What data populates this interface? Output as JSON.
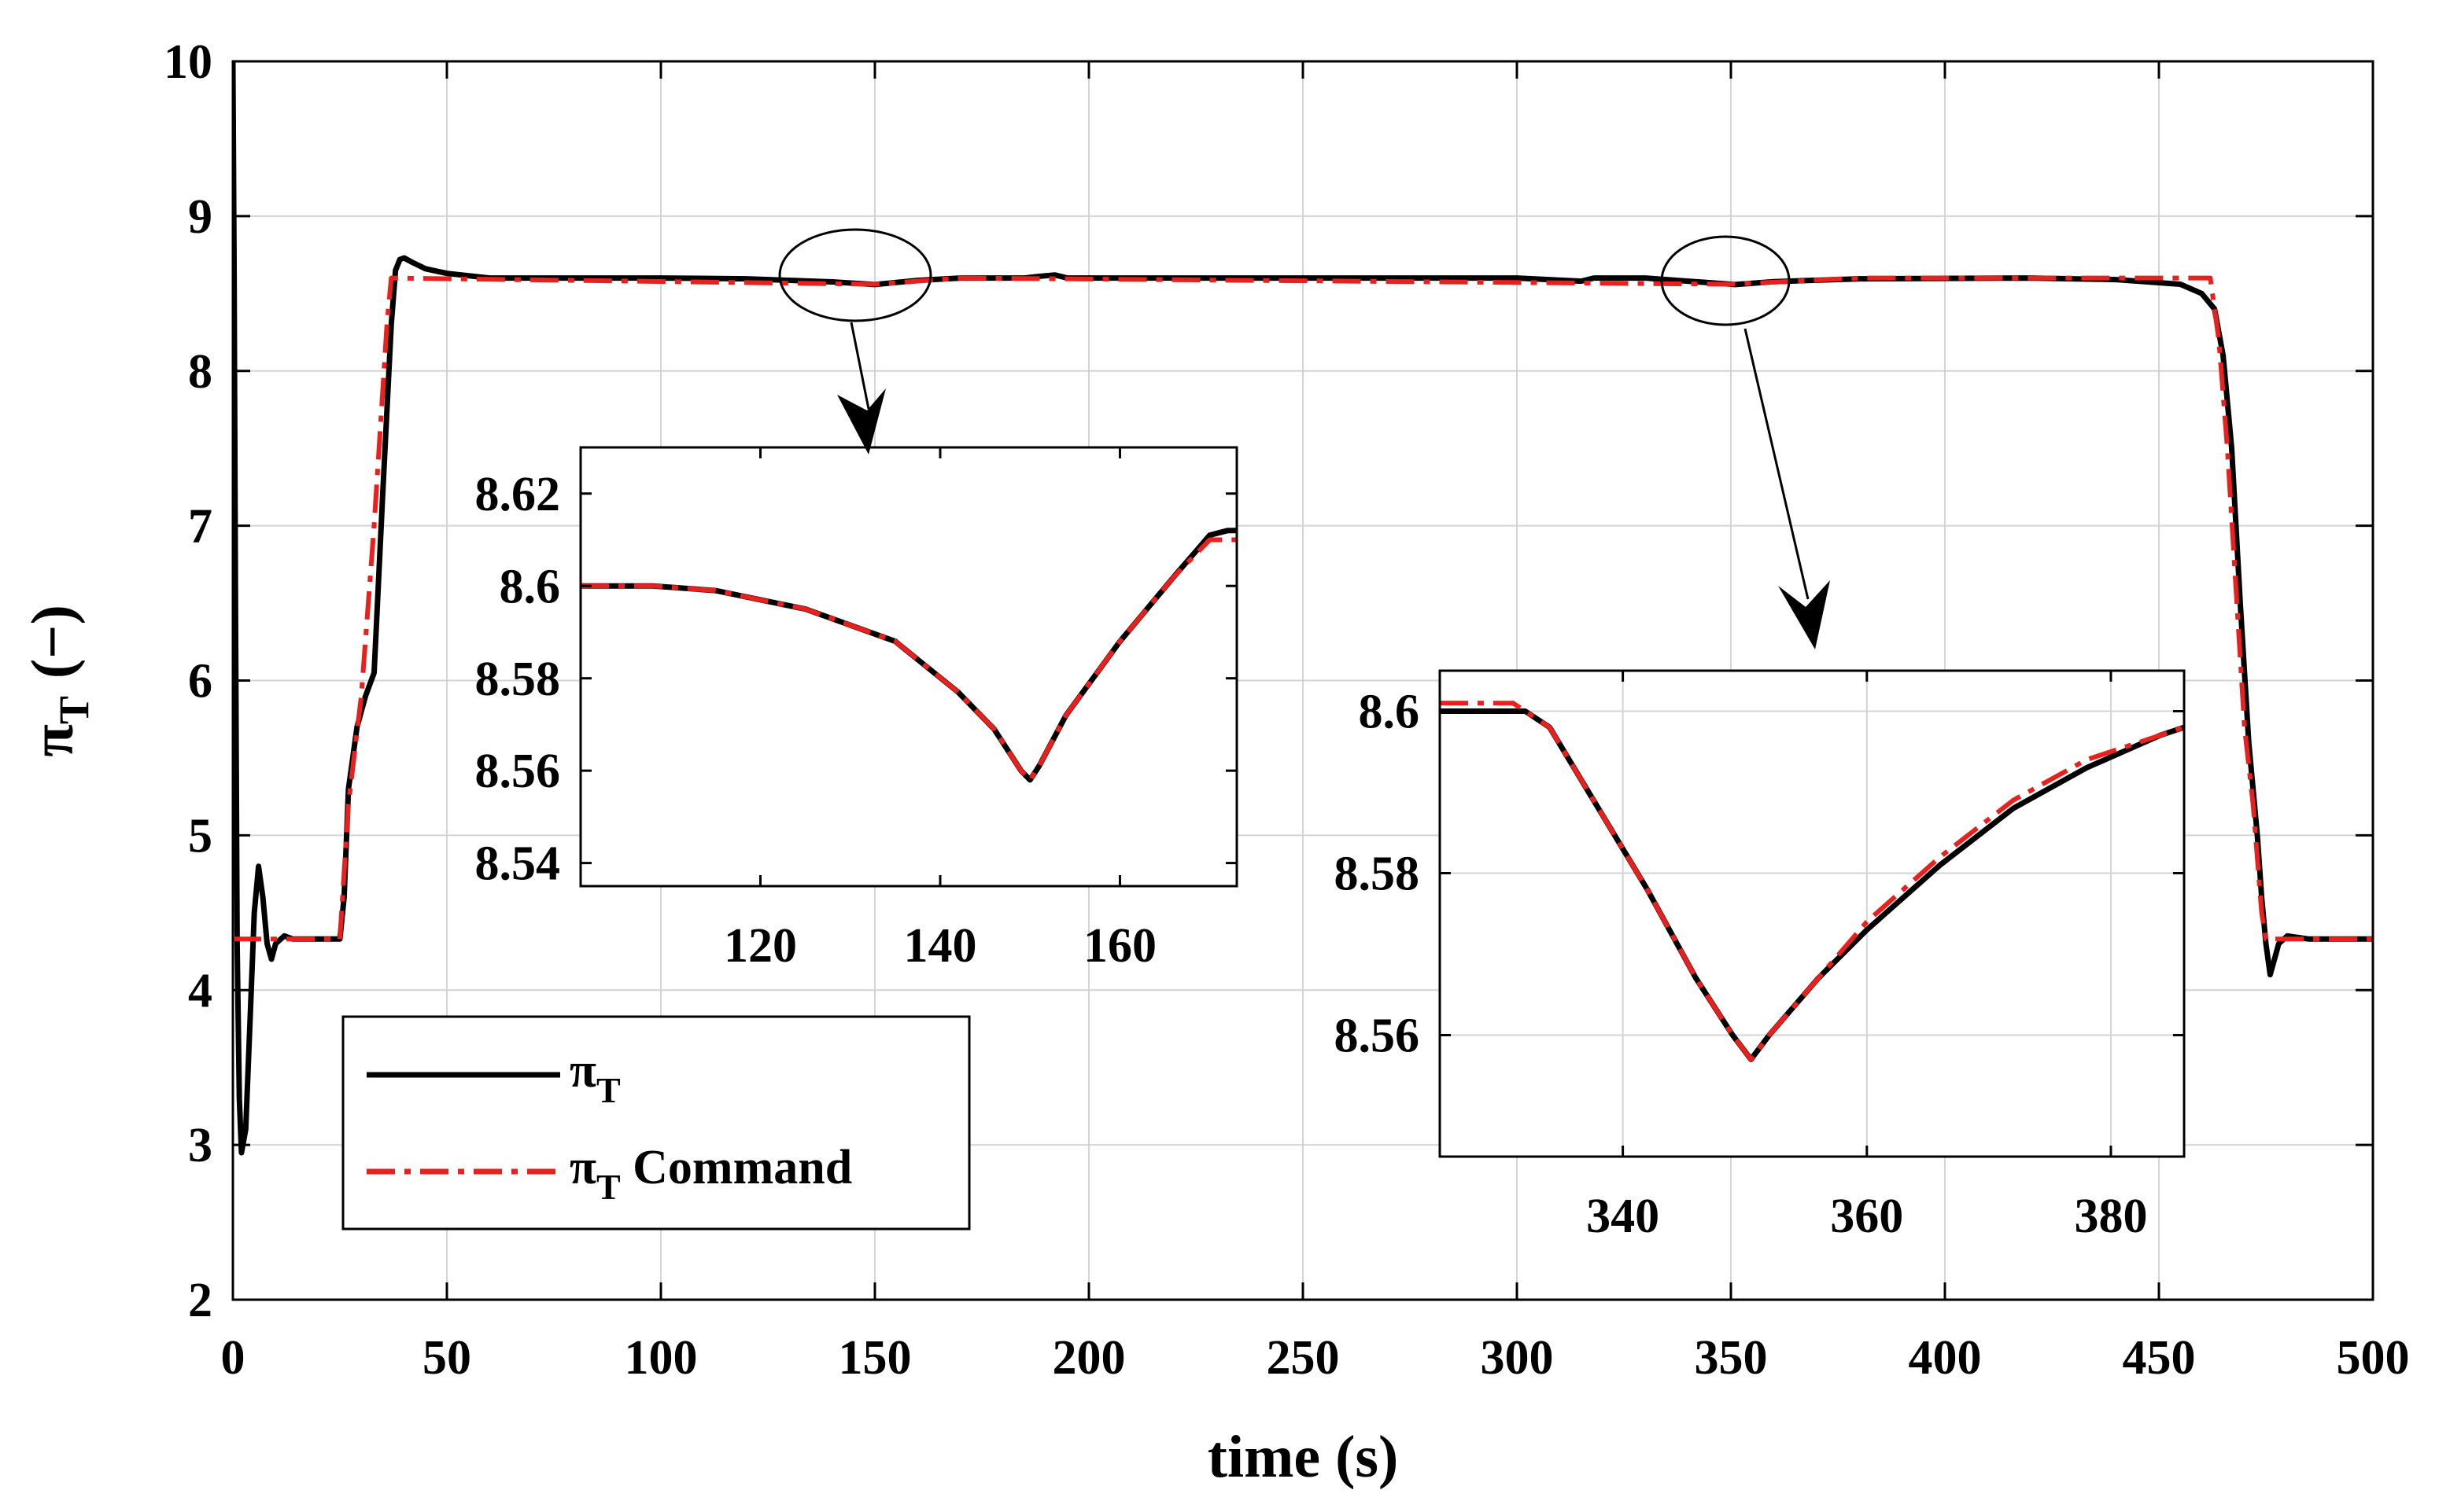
{
  "chart_data": [
    {
      "id": "main",
      "type": "line",
      "xlabel": "time (s)",
      "ylabel_symbol": "π",
      "ylabel_sub": "T",
      "ylabel_unit": "(−)",
      "xlim": [
        0,
        500
      ],
      "ylim": [
        2,
        10
      ],
      "xticks": [
        0,
        50,
        100,
        150,
        200,
        250,
        300,
        350,
        400,
        450,
        500
      ],
      "yticks": [
        2,
        3,
        4,
        5,
        6,
        7,
        8,
        9,
        10
      ],
      "grid": true,
      "legend_position": "bottom-left",
      "series": [
        {
          "name": "π_T",
          "legend_symbol": "π",
          "legend_sub": "T",
          "legend_suffix": "",
          "style": "solid",
          "color": "#000000",
          "points": [
            [
              0,
              10
            ],
            [
              0.3,
              8.6
            ],
            [
              0.6,
              6.5
            ],
            [
              1,
              4.3
            ],
            [
              1.5,
              3.3
            ],
            [
              2,
              2.95
            ],
            [
              3,
              3.1
            ],
            [
              4,
              3.8
            ],
            [
              5,
              4.5
            ],
            [
              6,
              4.8
            ],
            [
              7,
              4.6
            ],
            [
              8,
              4.3
            ],
            [
              9,
              4.2
            ],
            [
              10,
              4.3
            ],
            [
              12,
              4.35
            ],
            [
              14,
              4.33
            ],
            [
              25,
              4.33
            ],
            [
              26,
              4.6
            ],
            [
              27,
              5.3
            ],
            [
              29,
              5.7
            ],
            [
              31,
              5.9
            ],
            [
              33,
              6.05
            ],
            [
              35,
              7.2
            ],
            [
              37,
              8.3
            ],
            [
              38,
              8.65
            ],
            [
              39,
              8.72
            ],
            [
              40,
              8.73
            ],
            [
              42,
              8.7
            ],
            [
              45,
              8.66
            ],
            [
              50,
              8.63
            ],
            [
              60,
              8.6
            ],
            [
              100,
              8.6
            ],
            [
              120,
              8.595
            ],
            [
              140,
              8.575
            ],
            [
              150,
              8.558
            ],
            [
              160,
              8.585
            ],
            [
              170,
              8.6
            ],
            [
              185,
              8.6
            ],
            [
              188,
              8.61
            ],
            [
              192,
              8.62
            ],
            [
              195,
              8.6
            ],
            [
              300,
              8.6
            ],
            [
              315,
              8.58
            ],
            [
              318,
              8.6
            ],
            [
              330,
              8.6
            ],
            [
              340,
              8.58
            ],
            [
              351,
              8.558
            ],
            [
              360,
              8.577
            ],
            [
              380,
              8.595
            ],
            [
              420,
              8.6
            ],
            [
              440,
              8.59
            ],
            [
              455,
              8.56
            ],
            [
              460,
              8.5
            ],
            [
              463,
              8.4
            ],
            [
              465,
              8.1
            ],
            [
              467,
              7.5
            ],
            [
              469,
              6.5
            ],
            [
              471,
              5.6
            ],
            [
              473,
              5.0
            ],
            [
              474,
              4.6
            ],
            [
              475,
              4.3
            ],
            [
              476,
              4.1
            ],
            [
              477,
              4.2
            ],
            [
              478,
              4.3
            ],
            [
              480,
              4.35
            ],
            [
              485,
              4.33
            ],
            [
              500,
              4.33
            ]
          ]
        },
        {
          "name": "π_T Command",
          "legend_symbol": "π",
          "legend_sub": "T",
          "legend_suffix": " Command",
          "style": "dashdot",
          "color": "#e8201e",
          "points": [
            [
              0,
              4.33
            ],
            [
              25,
              4.33
            ],
            [
              27,
              5.2
            ],
            [
              30,
              5.9
            ],
            [
              33,
              7.0
            ],
            [
              36,
              8.3
            ],
            [
              37,
              8.6
            ],
            [
              150,
              8.56
            ],
            [
              170,
              8.6
            ],
            [
              350,
              8.56
            ],
            [
              380,
              8.6
            ],
            [
              462,
              8.6
            ],
            [
              464,
              8.2
            ],
            [
              466,
              7.5
            ],
            [
              468,
              6.6
            ],
            [
              470,
              5.7
            ],
            [
              472,
              5.2
            ],
            [
              474,
              4.5
            ],
            [
              475,
              4.33
            ],
            [
              500,
              4.33
            ]
          ]
        }
      ]
    },
    {
      "id": "inset1",
      "type": "line",
      "xlim": [
        100,
        173
      ],
      "ylim": [
        8.535,
        8.63
      ],
      "xticks": [
        120,
        140,
        160
      ],
      "yticks": [
        8.54,
        8.56,
        8.58,
        8.6,
        8.62
      ],
      "grid": false,
      "series": [
        {
          "name": "π_T",
          "style": "solid",
          "color": "#000000",
          "points": [
            [
              100,
              8.6
            ],
            [
              108,
              8.6
            ],
            [
              115,
              8.599
            ],
            [
              125,
              8.595
            ],
            [
              135,
              8.588
            ],
            [
              142,
              8.577
            ],
            [
              146,
              8.569
            ],
            [
              149,
              8.56
            ],
            [
              150,
              8.558
            ],
            [
              151,
              8.561
            ],
            [
              154,
              8.572
            ],
            [
              160,
              8.588
            ],
            [
              166,
              8.602
            ],
            [
              170,
              8.611
            ],
            [
              172,
              8.612
            ],
            [
              173,
              8.612
            ]
          ]
        },
        {
          "name": "π_T Command",
          "style": "dashdot",
          "color": "#e8201e",
          "points": [
            [
              100,
              8.6
            ],
            [
              108,
              8.6
            ],
            [
              115,
              8.599
            ],
            [
              125,
              8.595
            ],
            [
              135,
              8.588
            ],
            [
              142,
              8.577
            ],
            [
              146,
              8.569
            ],
            [
              149,
              8.56
            ],
            [
              150,
              8.558
            ],
            [
              151,
              8.561
            ],
            [
              154,
              8.572
            ],
            [
              160,
              8.588
            ],
            [
              166,
              8.602
            ],
            [
              170,
              8.61
            ],
            [
              173,
              8.61
            ]
          ]
        }
      ]
    },
    {
      "id": "inset2",
      "type": "line",
      "xlim": [
        325,
        386
      ],
      "ylim": [
        8.545,
        8.605
      ],
      "xticks": [
        340,
        360,
        380
      ],
      "yticks": [
        8.56,
        8.58,
        8.6
      ],
      "grid": true,
      "series": [
        {
          "name": "π_T",
          "style": "solid",
          "color": "#000000",
          "points": [
            [
              325,
              8.6
            ],
            [
              330,
              8.6
            ],
            [
              332,
              8.6
            ],
            [
              334,
              8.598
            ],
            [
              338,
              8.588
            ],
            [
              342,
              8.578
            ],
            [
              346,
              8.567
            ],
            [
              349,
              8.56
            ],
            [
              350.5,
              8.557
            ],
            [
              352,
              8.56
            ],
            [
              356,
              8.567
            ],
            [
              360,
              8.573
            ],
            [
              366,
              8.581
            ],
            [
              372,
              8.588
            ],
            [
              378,
              8.593
            ],
            [
              384,
              8.597
            ],
            [
              386,
              8.598
            ]
          ]
        },
        {
          "name": "π_T Command",
          "style": "dashdot",
          "color": "#e8201e",
          "points": [
            [
              325,
              8.601
            ],
            [
              331,
              8.601
            ],
            [
              332,
              8.6
            ],
            [
              334,
              8.598
            ],
            [
              338,
              8.588
            ],
            [
              342,
              8.578
            ],
            [
              346,
              8.567
            ],
            [
              349,
              8.56
            ],
            [
              350.5,
              8.557
            ],
            [
              352,
              8.56
            ],
            [
              356,
              8.567
            ],
            [
              360,
              8.574
            ],
            [
              366,
              8.582
            ],
            [
              372,
              8.589
            ],
            [
              378,
              8.594
            ],
            [
              384,
              8.597
            ],
            [
              386,
              8.598
            ]
          ]
        }
      ]
    }
  ]
}
